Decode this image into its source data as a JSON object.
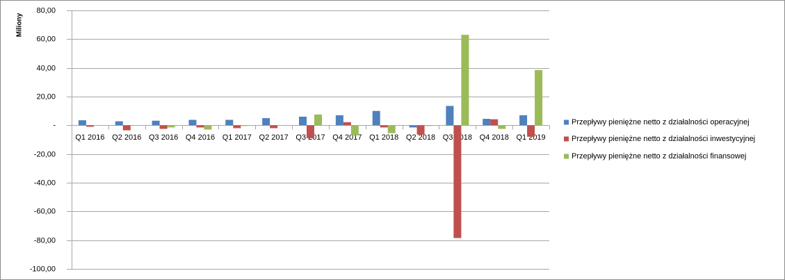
{
  "chart_data": {
    "type": "bar",
    "y_label": "Miliony",
    "categories": [
      "Q1 2016",
      "Q2 2016",
      "Q3 2016",
      "Q4 2016",
      "Q1 2017",
      "Q2 2017",
      "Q3 2017",
      "Q4 2017",
      "Q1 2018",
      "Q2 2018",
      "Q3 2018",
      "Q4 2018",
      "Q1 2019"
    ],
    "series": [
      {
        "name": "Przepływy pieniężne netto z działalności operacyjnej",
        "color": "#4f81bd",
        "values": [
          3.5,
          2.8,
          3.2,
          3.8,
          3.8,
          5,
          6,
          7,
          10,
          -1.5,
          13.5,
          4.5,
          7
        ]
      },
      {
        "name": "Przepływy pieniężne netto z działalności inwestycyjnej",
        "color": "#c0504d",
        "values": [
          -1,
          -3.5,
          -2.5,
          -1.5,
          -2,
          -2,
          -9,
          2.2,
          -1.5,
          -6.5,
          -78.5,
          4.2,
          -8
        ]
      },
      {
        "name": "Przepływy pieniężne netto z działalności finansowej",
        "color": "#9bbb59",
        "values": [
          0,
          0,
          -1.5,
          -3,
          -0.5,
          0,
          7.5,
          -7,
          -5.5,
          -0.5,
          63,
          -2.5,
          38.5
        ]
      }
    ],
    "ylim": [
      -100,
      80
    ],
    "yticks": [
      {
        "value": -100,
        "label": "-100,00"
      },
      {
        "value": -80,
        "label": "-80,00"
      },
      {
        "value": -60,
        "label": "-60,00"
      },
      {
        "value": -40,
        "label": "-40,00"
      },
      {
        "value": -20,
        "label": "-20,00"
      },
      {
        "value": 0,
        "label": "-"
      },
      {
        "value": 20,
        "label": "20,00"
      },
      {
        "value": 40,
        "label": "40,00"
      },
      {
        "value": 60,
        "label": "60,00"
      },
      {
        "value": 80,
        "label": "80,00"
      }
    ],
    "grid": true,
    "legend": "right"
  }
}
